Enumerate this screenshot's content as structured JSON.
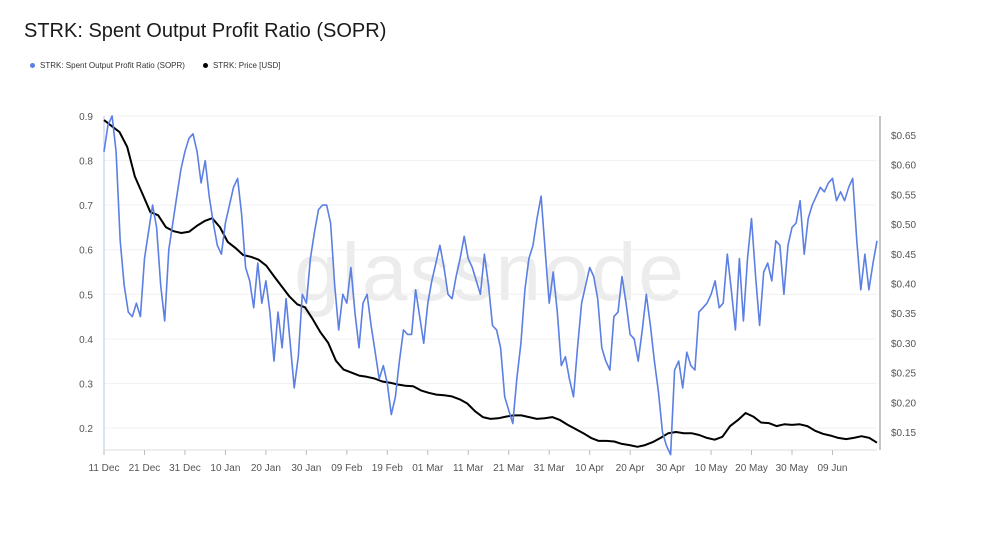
{
  "chart_data": {
    "title": "STRK: Spent Output Profit Ratio (SOPR)",
    "type": "line",
    "watermark": "glassnode",
    "x_ticks": [
      "11 Dec",
      "21 Dec",
      "31 Dec",
      "10 Jan",
      "20 Jan",
      "30 Jan",
      "09 Feb",
      "19 Feb",
      "01 Mar",
      "11 Mar",
      "21 Mar",
      "31 Mar",
      "10 Apr",
      "20 Apr",
      "30 Apr",
      "10 May",
      "20 May",
      "30 May",
      "09 Jun"
    ],
    "x_range_days": [
      0,
      188
    ],
    "left_axis": {
      "ticks": [
        "0.9",
        "0.8",
        "0.7",
        "0.6",
        "0.5",
        "0.4",
        "0.3",
        "0.2"
      ],
      "ylim": [
        0.155,
        0.9
      ]
    },
    "right_axis": {
      "ticks": [
        "$0.65",
        "$0.60",
        "$0.55",
        "$0.50",
        "$0.45",
        "$0.40",
        "$0.35",
        "$0.30",
        "$0.25",
        "$0.20",
        "$0.15"
      ],
      "ylim": [
        0.12,
        0.675
      ]
    },
    "series": [
      {
        "name": "STRK: Spent Output Profit Ratio (SOPR)",
        "axis": "left",
        "color": "#5b7fe3",
        "points": [
          [
            0,
            0.82
          ],
          [
            1,
            0.88
          ],
          [
            2,
            0.9
          ],
          [
            3,
            0.82
          ],
          [
            4,
            0.62
          ],
          [
            5,
            0.52
          ],
          [
            6,
            0.46
          ],
          [
            7,
            0.45
          ],
          [
            8,
            0.48
          ],
          [
            9,
            0.45
          ],
          [
            10,
            0.58
          ],
          [
            11,
            0.64
          ],
          [
            12,
            0.7
          ],
          [
            13,
            0.65
          ],
          [
            14,
            0.52
          ],
          [
            15,
            0.44
          ],
          [
            16,
            0.6
          ],
          [
            17,
            0.66
          ],
          [
            18,
            0.72
          ],
          [
            19,
            0.78
          ],
          [
            20,
            0.82
          ],
          [
            21,
            0.85
          ],
          [
            22,
            0.86
          ],
          [
            23,
            0.82
          ],
          [
            24,
            0.75
          ],
          [
            25,
            0.8
          ],
          [
            26,
            0.72
          ],
          [
            27,
            0.66
          ],
          [
            28,
            0.61
          ],
          [
            29,
            0.59
          ],
          [
            30,
            0.66
          ],
          [
            31,
            0.7
          ],
          [
            32,
            0.74
          ],
          [
            33,
            0.76
          ],
          [
            34,
            0.68
          ],
          [
            35,
            0.56
          ],
          [
            36,
            0.53
          ],
          [
            37,
            0.47
          ],
          [
            38,
            0.57
          ],
          [
            39,
            0.48
          ],
          [
            40,
            0.53
          ],
          [
            41,
            0.46
          ],
          [
            42,
            0.35
          ],
          [
            43,
            0.46
          ],
          [
            44,
            0.38
          ],
          [
            45,
            0.49
          ],
          [
            46,
            0.39
          ],
          [
            47,
            0.29
          ],
          [
            48,
            0.36
          ],
          [
            49,
            0.5
          ],
          [
            50,
            0.48
          ],
          [
            51,
            0.58
          ],
          [
            52,
            0.64
          ],
          [
            53,
            0.69
          ],
          [
            54,
            0.7
          ],
          [
            55,
            0.7
          ],
          [
            56,
            0.66
          ],
          [
            57,
            0.52
          ],
          [
            58,
            0.42
          ],
          [
            59,
            0.5
          ],
          [
            60,
            0.48
          ],
          [
            61,
            0.56
          ],
          [
            62,
            0.46
          ],
          [
            63,
            0.38
          ],
          [
            64,
            0.48
          ],
          [
            65,
            0.5
          ],
          [
            66,
            0.43
          ],
          [
            67,
            0.37
          ],
          [
            68,
            0.31
          ],
          [
            69,
            0.34
          ],
          [
            70,
            0.3
          ],
          [
            71,
            0.23
          ],
          [
            72,
            0.27
          ],
          [
            73,
            0.35
          ],
          [
            74,
            0.42
          ],
          [
            75,
            0.41
          ],
          [
            76,
            0.41
          ],
          [
            77,
            0.51
          ],
          [
            78,
            0.45
          ],
          [
            79,
            0.39
          ],
          [
            80,
            0.48
          ],
          [
            81,
            0.53
          ],
          [
            82,
            0.57
          ],
          [
            83,
            0.61
          ],
          [
            84,
            0.56
          ],
          [
            85,
            0.5
          ],
          [
            86,
            0.49
          ],
          [
            87,
            0.54
          ],
          [
            88,
            0.58
          ],
          [
            89,
            0.63
          ],
          [
            90,
            0.58
          ],
          [
            91,
            0.56
          ],
          [
            92,
            0.53
          ],
          [
            93,
            0.5
          ],
          [
            94,
            0.59
          ],
          [
            95,
            0.52
          ],
          [
            96,
            0.43
          ],
          [
            97,
            0.42
          ],
          [
            98,
            0.38
          ],
          [
            99,
            0.27
          ],
          [
            100,
            0.24
          ],
          [
            101,
            0.21
          ],
          [
            102,
            0.31
          ],
          [
            103,
            0.39
          ],
          [
            104,
            0.51
          ],
          [
            105,
            0.58
          ],
          [
            106,
            0.61
          ],
          [
            107,
            0.67
          ],
          [
            108,
            0.72
          ],
          [
            109,
            0.6
          ],
          [
            110,
            0.48
          ],
          [
            111,
            0.55
          ],
          [
            112,
            0.46
          ],
          [
            113,
            0.34
          ],
          [
            114,
            0.36
          ],
          [
            115,
            0.31
          ],
          [
            116,
            0.27
          ],
          [
            117,
            0.38
          ],
          [
            118,
            0.48
          ],
          [
            119,
            0.52
          ],
          [
            120,
            0.56
          ],
          [
            121,
            0.54
          ],
          [
            122,
            0.49
          ],
          [
            123,
            0.38
          ],
          [
            124,
            0.35
          ],
          [
            125,
            0.33
          ],
          [
            126,
            0.45
          ],
          [
            127,
            0.46
          ],
          [
            128,
            0.54
          ],
          [
            129,
            0.48
          ],
          [
            130,
            0.41
          ],
          [
            131,
            0.4
          ],
          [
            132,
            0.35
          ],
          [
            133,
            0.42
          ],
          [
            134,
            0.5
          ],
          [
            135,
            0.43
          ],
          [
            136,
            0.35
          ],
          [
            137,
            0.28
          ],
          [
            138,
            0.19
          ],
          [
            139,
            0.16
          ],
          [
            140,
            0.14
          ],
          [
            141,
            0.33
          ],
          [
            142,
            0.35
          ],
          [
            143,
            0.29
          ],
          [
            144,
            0.37
          ],
          [
            145,
            0.34
          ],
          [
            146,
            0.33
          ],
          [
            147,
            0.46
          ],
          [
            148,
            0.47
          ],
          [
            149,
            0.48
          ],
          [
            150,
            0.5
          ],
          [
            151,
            0.53
          ],
          [
            152,
            0.47
          ],
          [
            153,
            0.48
          ],
          [
            154,
            0.59
          ],
          [
            155,
            0.51
          ],
          [
            156,
            0.42
          ],
          [
            157,
            0.58
          ],
          [
            158,
            0.44
          ],
          [
            159,
            0.58
          ],
          [
            160,
            0.67
          ],
          [
            161,
            0.54
          ],
          [
            162,
            0.43
          ],
          [
            163,
            0.55
          ],
          [
            164,
            0.57
          ],
          [
            165,
            0.53
          ],
          [
            166,
            0.62
          ],
          [
            167,
            0.61
          ],
          [
            168,
            0.5
          ],
          [
            169,
            0.61
          ],
          [
            170,
            0.65
          ],
          [
            171,
            0.66
          ],
          [
            172,
            0.71
          ],
          [
            173,
            0.59
          ],
          [
            174,
            0.67
          ],
          [
            175,
            0.7
          ],
          [
            176,
            0.72
          ],
          [
            177,
            0.74
          ],
          [
            178,
            0.73
          ],
          [
            179,
            0.75
          ],
          [
            180,
            0.76
          ],
          [
            181,
            0.71
          ],
          [
            182,
            0.73
          ],
          [
            183,
            0.71
          ],
          [
            184,
            0.74
          ],
          [
            185,
            0.76
          ],
          [
            186,
            0.62
          ],
          [
            187,
            0.51
          ],
          [
            188,
            0.59
          ],
          [
            189,
            0.51
          ],
          [
            190,
            0.57
          ],
          [
            191,
            0.62
          ]
        ]
      },
      {
        "name": "STRK: Price [USD]",
        "axis": "right",
        "color": "#000000",
        "points": [
          [
            0,
            0.675
          ],
          [
            2,
            0.665
          ],
          [
            4,
            0.655
          ],
          [
            6,
            0.63
          ],
          [
            8,
            0.58
          ],
          [
            10,
            0.55
          ],
          [
            12,
            0.52
          ],
          [
            14,
            0.515
          ],
          [
            16,
            0.495
          ],
          [
            18,
            0.488
          ],
          [
            20,
            0.485
          ],
          [
            22,
            0.487
          ],
          [
            24,
            0.497
          ],
          [
            26,
            0.505
          ],
          [
            28,
            0.51
          ],
          [
            30,
            0.495
          ],
          [
            32,
            0.47
          ],
          [
            34,
            0.46
          ],
          [
            36,
            0.448
          ],
          [
            38,
            0.445
          ],
          [
            40,
            0.44
          ],
          [
            42,
            0.43
          ],
          [
            44,
            0.412
          ],
          [
            46,
            0.395
          ],
          [
            48,
            0.378
          ],
          [
            50,
            0.365
          ],
          [
            52,
            0.36
          ],
          [
            54,
            0.34
          ],
          [
            56,
            0.318
          ],
          [
            58,
            0.3
          ],
          [
            60,
            0.27
          ],
          [
            62,
            0.255
          ],
          [
            64,
            0.25
          ],
          [
            66,
            0.245
          ],
          [
            68,
            0.243
          ],
          [
            70,
            0.24
          ],
          [
            72,
            0.235
          ],
          [
            74,
            0.233
          ],
          [
            76,
            0.23
          ],
          [
            78,
            0.228
          ],
          [
            80,
            0.227
          ],
          [
            82,
            0.22
          ],
          [
            84,
            0.216
          ],
          [
            86,
            0.213
          ],
          [
            88,
            0.212
          ],
          [
            90,
            0.21
          ],
          [
            92,
            0.205
          ],
          [
            94,
            0.198
          ],
          [
            96,
            0.185
          ],
          [
            98,
            0.175
          ],
          [
            100,
            0.172
          ],
          [
            102,
            0.173
          ],
          [
            104,
            0.176
          ],
          [
            106,
            0.178
          ],
          [
            108,
            0.178
          ],
          [
            110,
            0.175
          ],
          [
            112,
            0.172
          ],
          [
            114,
            0.173
          ],
          [
            116,
            0.175
          ],
          [
            118,
            0.17
          ],
          [
            120,
            0.162
          ],
          [
            122,
            0.155
          ],
          [
            124,
            0.148
          ],
          [
            126,
            0.14
          ],
          [
            128,
            0.135
          ],
          [
            130,
            0.135
          ],
          [
            132,
            0.134
          ],
          [
            134,
            0.13
          ],
          [
            136,
            0.128
          ],
          [
            138,
            0.125
          ],
          [
            140,
            0.128
          ],
          [
            142,
            0.133
          ],
          [
            144,
            0.14
          ],
          [
            146,
            0.148
          ],
          [
            148,
            0.15
          ],
          [
            150,
            0.148
          ],
          [
            152,
            0.148
          ],
          [
            154,
            0.145
          ],
          [
            156,
            0.14
          ],
          [
            158,
            0.137
          ],
          [
            160,
            0.142
          ],
          [
            162,
            0.16
          ],
          [
            164,
            0.17
          ],
          [
            166,
            0.182
          ],
          [
            168,
            0.176
          ],
          [
            170,
            0.166
          ],
          [
            172,
            0.165
          ],
          [
            174,
            0.16
          ],
          [
            176,
            0.163
          ],
          [
            178,
            0.162
          ],
          [
            180,
            0.163
          ],
          [
            182,
            0.16
          ],
          [
            184,
            0.152
          ],
          [
            186,
            0.147
          ],
          [
            188,
            0.144
          ],
          [
            190,
            0.14
          ],
          [
            192,
            0.138
          ],
          [
            194,
            0.14
          ],
          [
            196,
            0.143
          ],
          [
            198,
            0.14
          ],
          [
            200,
            0.132
          ]
        ]
      }
    ]
  }
}
